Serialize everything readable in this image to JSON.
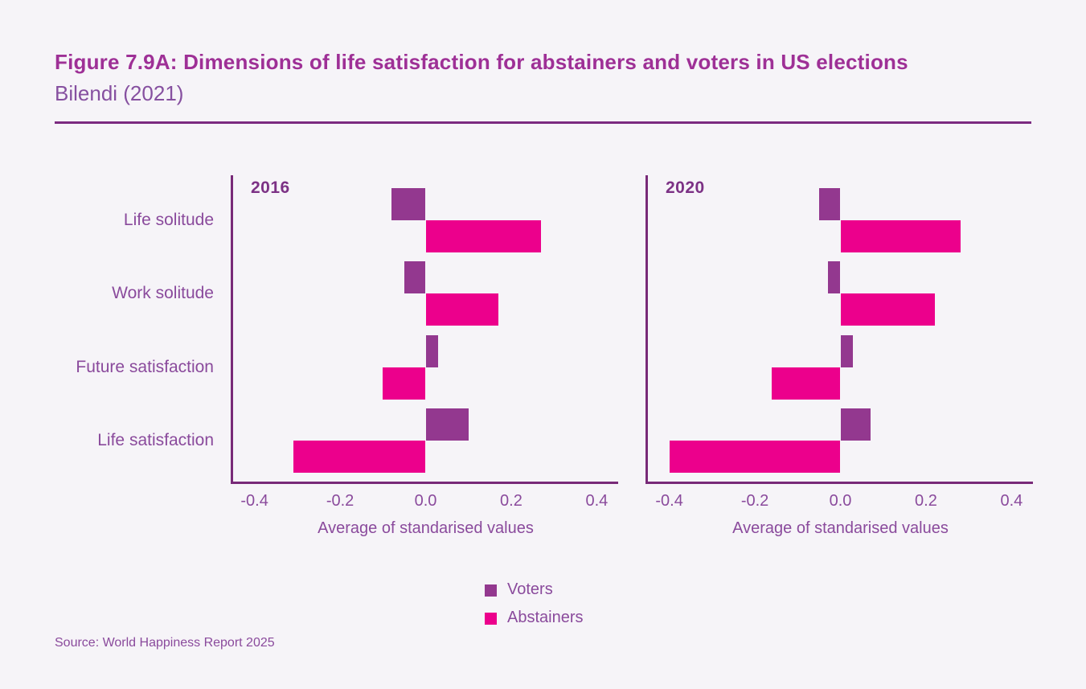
{
  "page": {
    "title": "Figure 7.9A: Dimensions of life satisfaction for abstainers and voters in US elections",
    "subtitle": "Bilendi (2021)",
    "source": "Source: World Happiness Report 2025"
  },
  "colors": {
    "background": "#f6f4f8",
    "voters": "#93388f",
    "abstainers": "#ec008c",
    "title_text": "#9e3096",
    "subtitle_text": "#8650a0",
    "axis_line": "#782a78",
    "label_text": "#8a4a9c",
    "year_text": "#7c3185",
    "divider": "#7b2a80"
  },
  "legend": {
    "items": [
      {
        "label": "Voters",
        "color": "#93388f"
      },
      {
        "label": "Abstainers",
        "color": "#ec008c"
      }
    ]
  },
  "chart_data": [
    {
      "type": "bar",
      "orientation": "horizontal",
      "panel_title": "2016",
      "categories": [
        "Life solitude",
        "Work solitude",
        "Future satisfaction",
        "Life satisfaction"
      ],
      "series": [
        {
          "name": "Voters",
          "color": "#93388f",
          "values": [
            -0.08,
            -0.05,
            0.03,
            0.1
          ]
        },
        {
          "name": "Abstainers",
          "color": "#ec008c",
          "values": [
            0.27,
            0.17,
            -0.1,
            -0.31
          ]
        }
      ],
      "xlabel": "Average of standarised values",
      "xlim": [
        -0.45,
        0.45
      ],
      "xtick_values": [
        -0.4,
        -0.2,
        0.0,
        0.2,
        0.4
      ],
      "xtick_labels": [
        "-0.4",
        "-0.2",
        "0.0",
        "0.2",
        "0.4"
      ],
      "grid": false,
      "legend_position": "bottom"
    },
    {
      "type": "bar",
      "orientation": "horizontal",
      "panel_title": "2020",
      "categories": [
        "Life solitude",
        "Work solitude",
        "Future satisfaction",
        "Life satisfaction"
      ],
      "series": [
        {
          "name": "Voters",
          "color": "#93388f",
          "values": [
            -0.05,
            -0.03,
            0.03,
            0.07
          ]
        },
        {
          "name": "Abstainers",
          "color": "#ec008c",
          "values": [
            0.28,
            0.22,
            -0.16,
            -0.4
          ]
        }
      ],
      "xlabel": "Average of standarised values",
      "xlim": [
        -0.45,
        0.45
      ],
      "xtick_values": [
        -0.4,
        -0.2,
        0.0,
        0.2,
        0.4
      ],
      "xtick_labels": [
        "-0.4",
        "-0.2",
        "0.0",
        "0.2",
        "0.4"
      ],
      "grid": false,
      "legend_position": "bottom"
    }
  ]
}
